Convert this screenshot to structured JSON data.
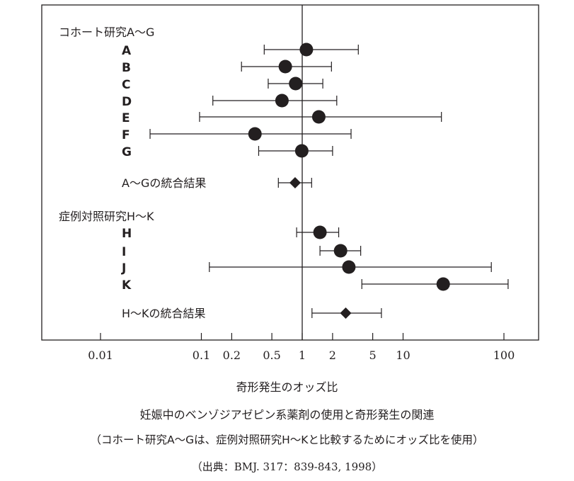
{
  "chart_data": {
    "type": "forest",
    "x_scale": "log",
    "xlim": [
      0.005,
      250
    ],
    "reference_line": 1,
    "ticks": [
      {
        "value": 0.01,
        "label": "0.01"
      },
      {
        "value": 0.1,
        "label": "0.1"
      },
      {
        "value": 0.2,
        "label": "0.2"
      },
      {
        "value": 0.5,
        "label": "0.5"
      },
      {
        "value": 1,
        "label": "1"
      },
      {
        "value": 2,
        "label": "2"
      },
      {
        "value": 5,
        "label": "5"
      },
      {
        "value": 10,
        "label": "10"
      },
      {
        "value": 100,
        "label": "100"
      }
    ],
    "xlabel": "奇形発生のオッズ比",
    "groups": [
      {
        "header": "コホート研究A～G",
        "studies": [
          {
            "label": "A",
            "or": 1.1,
            "lo": 0.42,
            "hi": 3.6
          },
          {
            "label": "B",
            "or": 0.68,
            "lo": 0.25,
            "hi": 1.95
          },
          {
            "label": "C",
            "or": 0.86,
            "lo": 0.46,
            "hi": 1.6
          },
          {
            "label": "D",
            "or": 0.63,
            "lo": 0.13,
            "hi": 2.2
          },
          {
            "label": "E",
            "or": 1.46,
            "lo": 0.096,
            "hi": 24
          },
          {
            "label": "F",
            "or": 0.34,
            "lo": 0.031,
            "hi": 3.05
          },
          {
            "label": "G",
            "or": 0.99,
            "lo": 0.37,
            "hi": 2.0
          }
        ],
        "pooled": {
          "label": "A～Gの統合結果",
          "or": 0.85,
          "lo": 0.58,
          "hi": 1.24
        }
      },
      {
        "header": "症例対照研究H～K",
        "studies": [
          {
            "label": "H",
            "or": 1.5,
            "lo": 0.88,
            "hi": 2.3
          },
          {
            "label": "I",
            "or": 2.4,
            "lo": 1.5,
            "hi": 3.8
          },
          {
            "label": "J",
            "or": 2.9,
            "lo": 0.12,
            "hi": 75
          },
          {
            "label": "K",
            "or": 25,
            "lo": 3.9,
            "hi": 110
          }
        ],
        "pooled": {
          "label": "H～Kの統合結果",
          "or": 2.7,
          "lo": 1.25,
          "hi": 6.1
        }
      }
    ]
  },
  "caption": {
    "line1": "妊娠中のベンゾジアゼピン系薬剤の使用と奇形発生の関連",
    "line2": "（コホート研究A～Gは、症例対照研究H～Kと比較するためにオッズ比を使用）",
    "line3": "（出典：BMJ. 317：839-843, 1998）"
  }
}
